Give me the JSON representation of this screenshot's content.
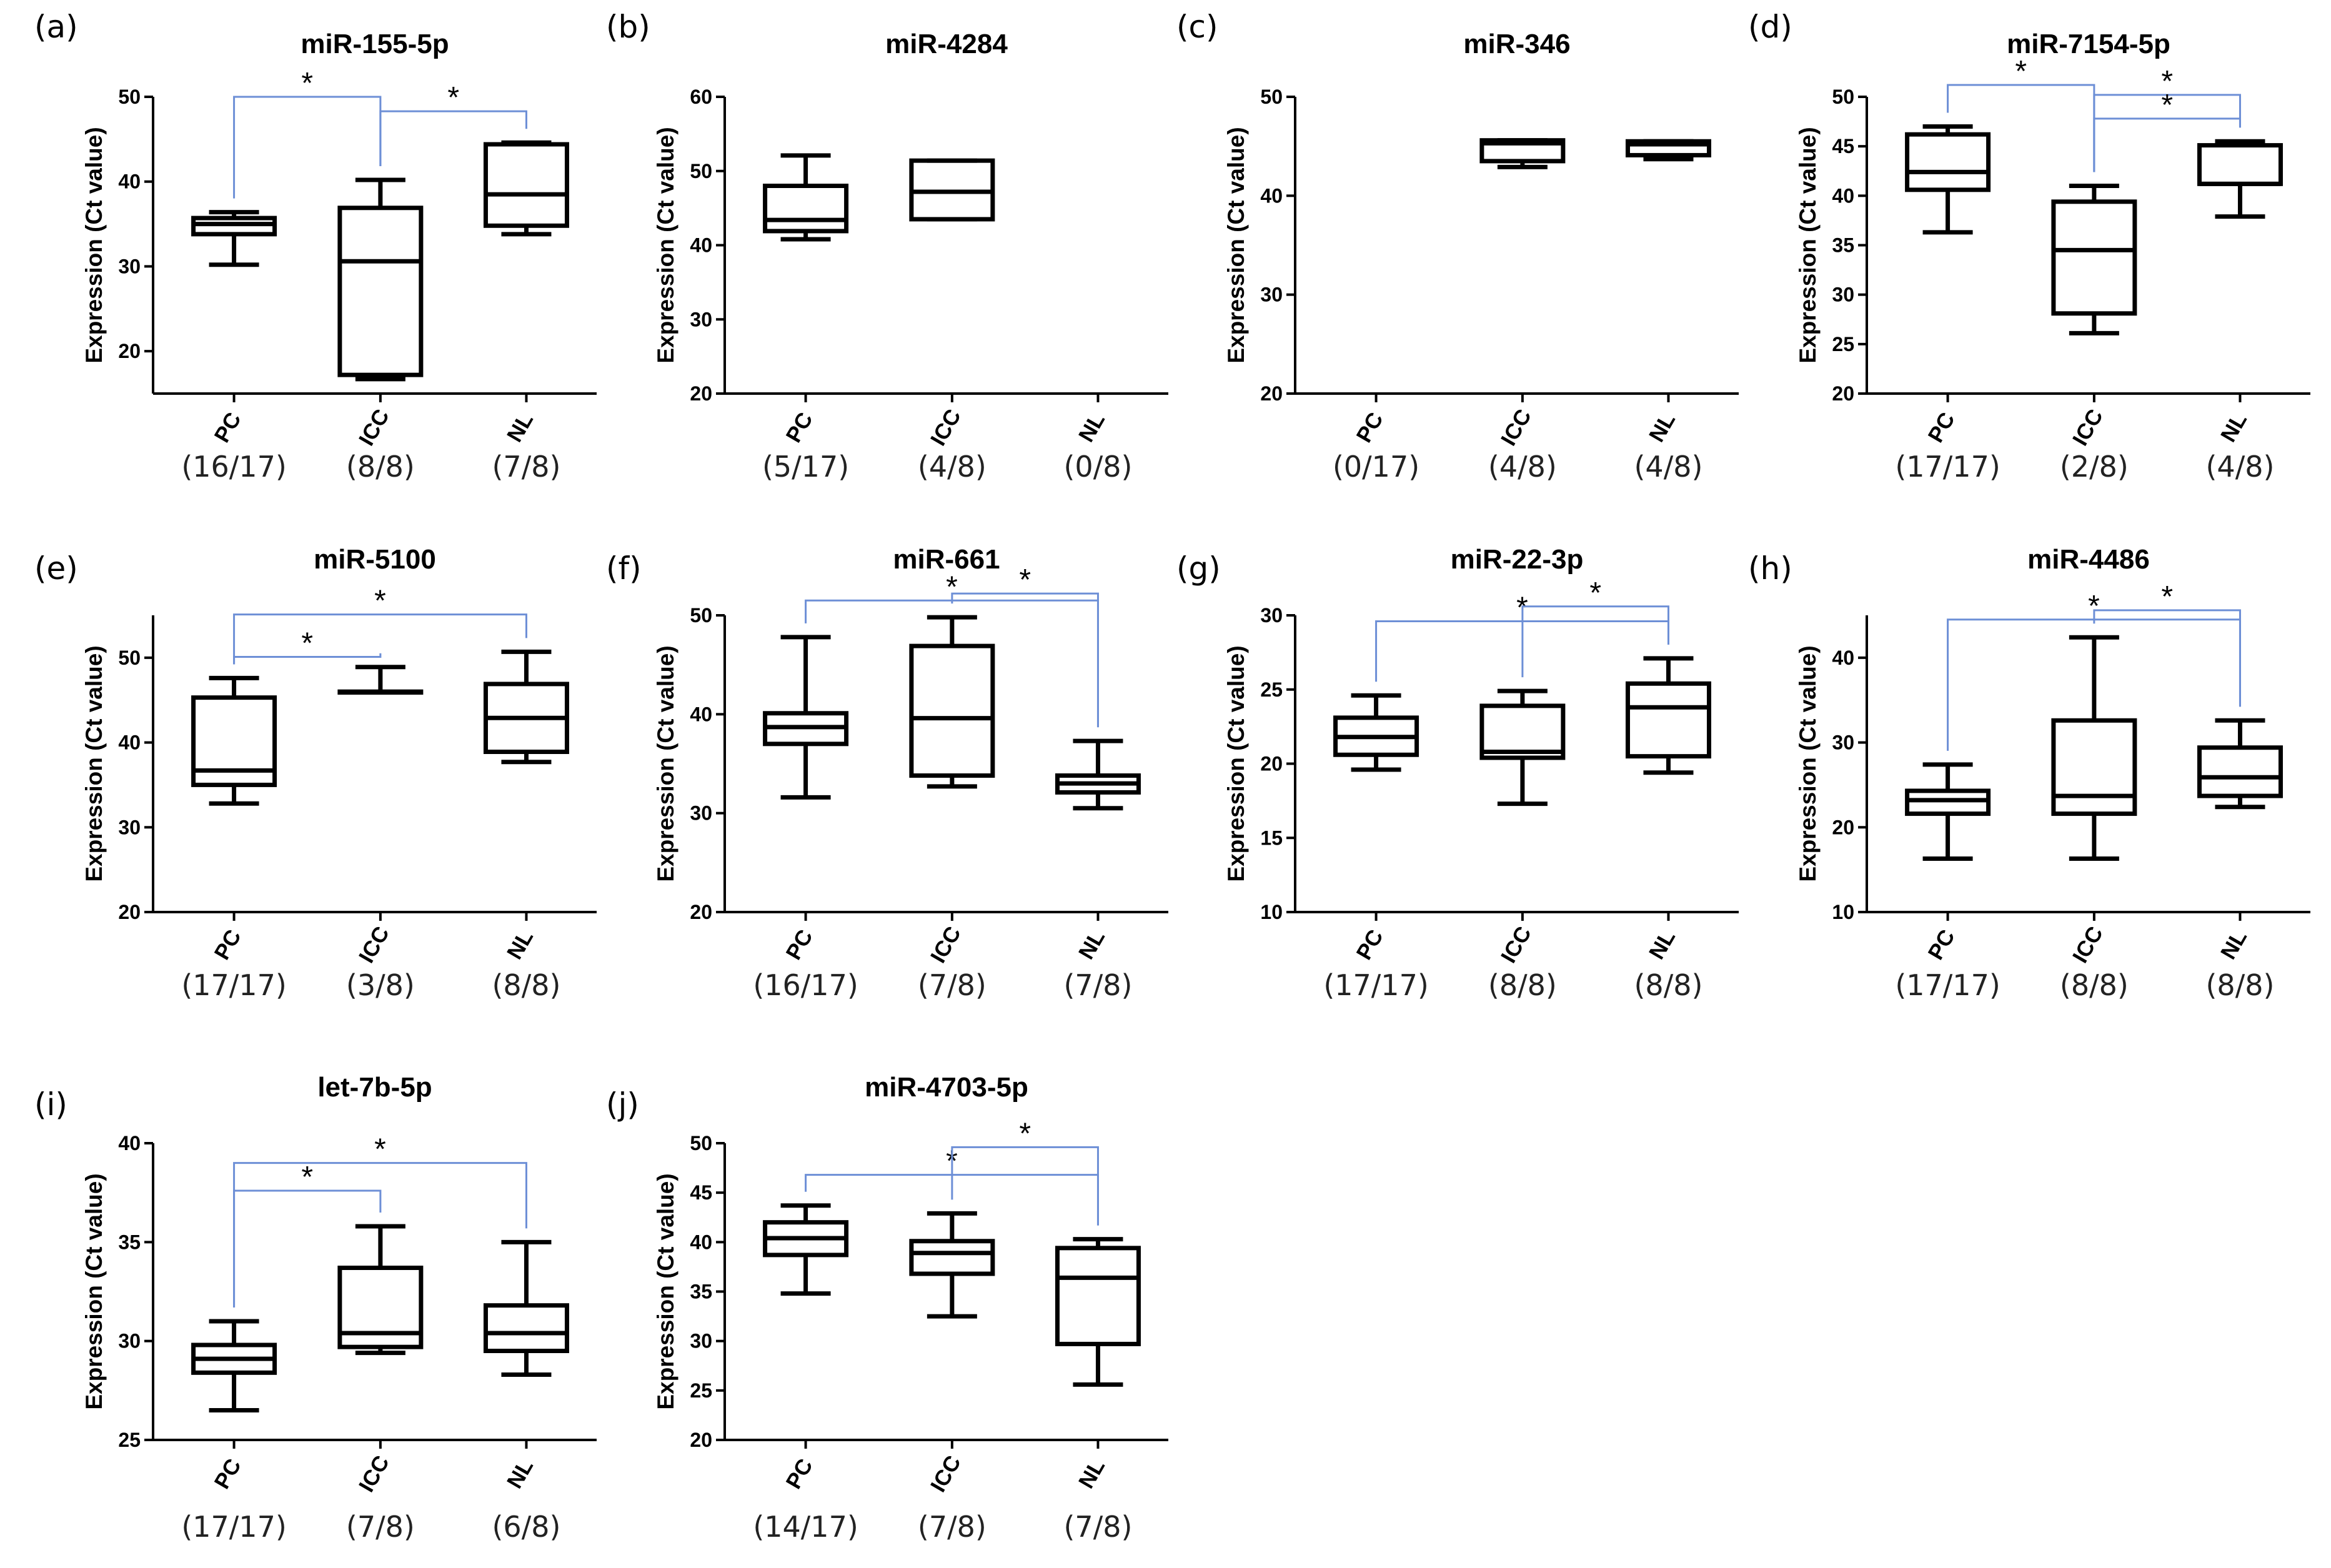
{
  "chart_data": [
    {
      "panel": "(a)",
      "type": "box",
      "title": "miR-155-5p",
      "ylabel": "Expression (Ct value)",
      "ylim": [
        15,
        50
      ],
      "yticks": [
        20,
        30,
        40,
        50
      ],
      "categories": [
        "PC",
        "ICC",
        "NL"
      ],
      "counts": [
        "(16/17)",
        "(8/8)",
        "(7/8)"
      ],
      "boxes": [
        {
          "min": 30.2,
          "q1": 33.8,
          "median": 35.0,
          "q3": 35.7,
          "max": 36.4
        },
        {
          "min": 16.7,
          "q1": 17.2,
          "median": 30.6,
          "q3": 36.9,
          "max": 40.2
        },
        {
          "min": 33.8,
          "q1": 34.8,
          "median": 38.5,
          "q3": 44.4,
          "max": 44.6
        }
      ],
      "significance": [
        {
          "from": 0,
          "to": 1,
          "level": 50.0,
          "label": "*"
        },
        {
          "from": 1,
          "to": 2,
          "level": 48.3,
          "label": "*"
        }
      ]
    },
    {
      "panel": "(b)",
      "type": "box",
      "title": "miR-4284",
      "ylabel": "Expression (Ct value)",
      "ylim": [
        20,
        60
      ],
      "yticks": [
        20,
        30,
        40,
        50,
        60
      ],
      "categories": [
        "PC",
        "ICC",
        "NL"
      ],
      "counts": [
        "(5/17)",
        "(4/8)",
        "(0/8)"
      ],
      "boxes": [
        {
          "min": 40.8,
          "q1": 41.9,
          "median": 43.4,
          "q3": 48.0,
          "max": 52.1
        },
        {
          "min": 43.5,
          "q1": 43.5,
          "median": 47.2,
          "q3": 51.4,
          "max": 51.4
        },
        null
      ],
      "significance": []
    },
    {
      "panel": "(c)",
      "type": "box",
      "title": "miR-346",
      "ylabel": "Expression (Ct value)",
      "ylim": [
        20,
        50
      ],
      "yticks": [
        20,
        30,
        40,
        50
      ],
      "categories": [
        "PC",
        "ICC",
        "NL"
      ],
      "counts": [
        "(0/17)",
        "(4/8)",
        "(4/8)"
      ],
      "boxes": [
        null,
        {
          "min": 42.9,
          "q1": 43.5,
          "median": 45.3,
          "q3": 45.6,
          "max": 45.6
        },
        {
          "min": 43.7,
          "q1": 44.1,
          "median": 45.2,
          "q3": 45.5,
          "max": 45.5
        }
      ],
      "significance": []
    },
    {
      "panel": "(d)",
      "type": "box",
      "title": "miR-7154-5p",
      "ylabel": "Expression (Ct value)",
      "ylim": [
        20,
        50
      ],
      "yticks": [
        20,
        25,
        30,
        35,
        40,
        45,
        50
      ],
      "categories": [
        "PC",
        "ICC",
        "NL"
      ],
      "counts": [
        "(17/17)",
        "(2/8)",
        "(4/8)"
      ],
      "boxes": [
        {
          "min": 36.3,
          "q1": 40.6,
          "median": 42.4,
          "q3": 46.2,
          "max": 47.0
        },
        {
          "min": 26.1,
          "q1": 28.1,
          "median": 34.5,
          "q3": 39.4,
          "max": 41.0
        },
        {
          "min": 37.9,
          "q1": 41.2,
          "median": 41.2,
          "q3": 45.1,
          "max": 45.5
        }
      ],
      "significance": [
        {
          "from": 0,
          "to": 1,
          "level": 51.2,
          "label": "*"
        },
        {
          "from": 1,
          "to": 2,
          "level": 50.2,
          "label": "*"
        },
        {
          "from": 1,
          "to": 2,
          "level": 47.8,
          "label": "*"
        }
      ]
    },
    {
      "panel": "(e)",
      "type": "box",
      "title": "miR-5100",
      "ylabel": "Expression (Ct value)",
      "ylim": [
        20,
        55
      ],
      "yticks": [
        20,
        30,
        40,
        50
      ],
      "categories": [
        "PC",
        "ICC",
        "NL"
      ],
      "counts": [
        "(17/17)",
        "(3/8)",
        "(8/8)"
      ],
      "boxes": [
        {
          "min": 32.8,
          "q1": 35.0,
          "median": 36.7,
          "q3": 45.3,
          "max": 47.6
        },
        {
          "min": 45.9,
          "q1": 45.9,
          "median": 45.9,
          "q3": 46.0,
          "max": 48.9
        },
        {
          "min": 37.7,
          "q1": 38.9,
          "median": 42.9,
          "q3": 46.9,
          "max": 50.7
        }
      ],
      "significance": [
        {
          "from": 0,
          "to": 1,
          "level": 50.1,
          "label": "*"
        },
        {
          "from": 0,
          "to": 2,
          "level": 55.1,
          "label": "*"
        }
      ]
    },
    {
      "panel": "(f)",
      "type": "box",
      "title": "miR-661",
      "ylabel": "Expression (Ct value)",
      "ylim": [
        20,
        50
      ],
      "yticks": [
        20,
        30,
        40,
        50
      ],
      "categories": [
        "PC",
        "ICC",
        "NL"
      ],
      "counts": [
        "(16/17)",
        "(7/8)",
        "(7/8)"
      ],
      "boxes": [
        {
          "min": 31.6,
          "q1": 37.0,
          "median": 38.7,
          "q3": 40.1,
          "max": 47.8
        },
        {
          "min": 32.7,
          "q1": 33.8,
          "median": 39.6,
          "q3": 46.9,
          "max": 49.8
        },
        {
          "min": 30.5,
          "q1": 32.1,
          "median": 33.0,
          "q3": 33.8,
          "max": 37.3
        }
      ],
      "significance": [
        {
          "from": 0,
          "to": 2,
          "level": 51.5,
          "label": "*"
        },
        {
          "from": 1,
          "to": 2,
          "level": 52.2,
          "label": "*"
        }
      ]
    },
    {
      "panel": "(g)",
      "type": "box",
      "title": "miR-22-3p",
      "ylabel": "Expression (Ct value)",
      "ylim": [
        10,
        30
      ],
      "yticks": [
        10,
        15,
        20,
        25,
        30
      ],
      "categories": [
        "PC",
        "ICC",
        "NL"
      ],
      "counts": [
        "(17/17)",
        "(8/8)",
        "(8/8)"
      ],
      "boxes": [
        {
          "min": 19.6,
          "q1": 20.6,
          "median": 21.8,
          "q3": 23.1,
          "max": 24.6
        },
        {
          "min": 17.3,
          "q1": 20.4,
          "median": 20.8,
          "q3": 23.9,
          "max": 24.9
        },
        {
          "min": 19.4,
          "q1": 20.5,
          "median": 23.8,
          "q3": 25.4,
          "max": 27.1
        }
      ],
      "significance": [
        {
          "from": 0,
          "to": 2,
          "level": 29.6,
          "label": "*"
        },
        {
          "from": 1,
          "to": 2,
          "level": 30.6,
          "label": "*"
        }
      ]
    },
    {
      "panel": "(h)",
      "type": "box",
      "title": "miR-4486",
      "ylabel": "Expression (Ct value)",
      "ylim": [
        10,
        45
      ],
      "yticks": [
        10,
        20,
        30,
        40
      ],
      "categories": [
        "PC",
        "ICC",
        "NL"
      ],
      "counts": [
        "(17/17)",
        "(8/8)",
        "(8/8)"
      ],
      "boxes": [
        {
          "min": 16.3,
          "q1": 21.6,
          "median": 23.2,
          "q3": 24.3,
          "max": 27.4
        },
        {
          "min": 16.3,
          "q1": 21.6,
          "median": 23.7,
          "q3": 32.6,
          "max": 42.4
        },
        {
          "min": 22.4,
          "q1": 23.7,
          "median": 25.9,
          "q3": 29.4,
          "max": 32.6
        }
      ],
      "significance": [
        {
          "from": 0,
          "to": 2,
          "level": 44.5,
          "label": "*"
        },
        {
          "from": 1,
          "to": 2,
          "level": 45.6,
          "label": "*"
        }
      ]
    },
    {
      "panel": "(i)",
      "type": "box",
      "title": "let-7b-5p",
      "ylabel": "Expression (Ct value)",
      "ylim": [
        25,
        40
      ],
      "yticks": [
        25,
        30,
        35,
        40
      ],
      "categories": [
        "PC",
        "ICC",
        "NL"
      ],
      "counts": [
        "(17/17)",
        "(7/8)",
        "(6/8)"
      ],
      "boxes": [
        {
          "min": 26.5,
          "q1": 28.4,
          "median": 29.1,
          "q3": 29.8,
          "max": 31.0
        },
        {
          "min": 29.4,
          "q1": 29.7,
          "median": 30.4,
          "q3": 33.7,
          "max": 35.8
        },
        {
          "min": 28.3,
          "q1": 29.5,
          "median": 30.4,
          "q3": 31.8,
          "max": 35.0
        }
      ],
      "significance": [
        {
          "from": 0,
          "to": 1,
          "level": 37.6,
          "label": "*"
        },
        {
          "from": 0,
          "to": 2,
          "level": 39.0,
          "label": "*"
        }
      ]
    },
    {
      "panel": "(j)",
      "type": "box",
      "title": "miR-4703-5p",
      "ylabel": "Expression (Ct value)",
      "ylim": [
        20,
        50
      ],
      "yticks": [
        20,
        25,
        30,
        35,
        40,
        45,
        50
      ],
      "categories": [
        "PC",
        "ICC",
        "NL"
      ],
      "counts": [
        "(14/17)",
        "(7/8)",
        "(7/8)"
      ],
      "boxes": [
        {
          "min": 34.8,
          "q1": 38.7,
          "median": 40.4,
          "q3": 42.0,
          "max": 43.7
        },
        {
          "min": 32.5,
          "q1": 36.8,
          "median": 38.9,
          "q3": 40.1,
          "max": 42.9
        },
        {
          "min": 25.6,
          "q1": 29.7,
          "median": 36.4,
          "q3": 39.4,
          "max": 40.3
        }
      ],
      "significance": [
        {
          "from": 0,
          "to": 2,
          "level": 46.8,
          "label": "*"
        },
        {
          "from": 1,
          "to": 2,
          "level": 49.6,
          "label": "*"
        }
      ]
    }
  ]
}
